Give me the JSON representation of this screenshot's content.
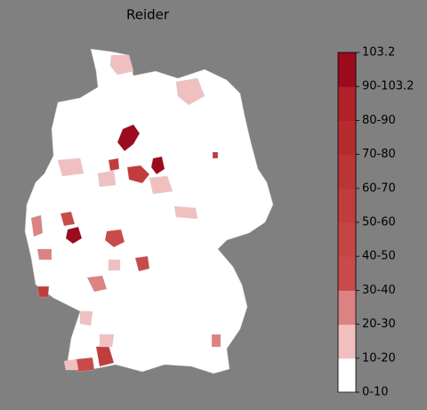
{
  "title": "Reider",
  "colorbar": {
    "ticks": [
      "0-10",
      "10-20",
      "20-30",
      "30-40",
      "40-50",
      "50-60",
      "60-70",
      "70-80",
      "80-90",
      "90-103.2",
      "103.2"
    ],
    "colors": [
      "#ffffff",
      "#f0c0c0",
      "#dc8282",
      "#c94a4a",
      "#c54444",
      "#c13d3d",
      "#bc3535",
      "#b62c2c",
      "#af2228",
      "#9c0a1e"
    ]
  }
}
